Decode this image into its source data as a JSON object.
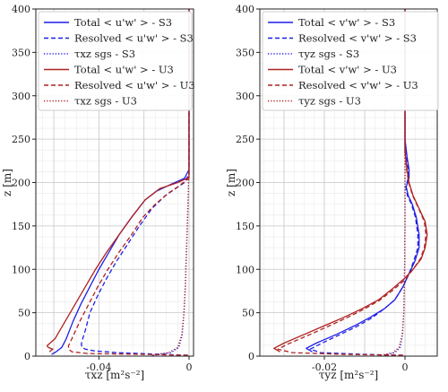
{
  "colors": {
    "S3": "#1f1fe6",
    "U3": "#b02020",
    "grid_major": "#c9c9c9",
    "grid_minor": "#ececec"
  },
  "chart_data": [
    {
      "type": "line",
      "xlim": [
        -0.068,
        0.002
      ],
      "ylim": [
        0,
        400
      ],
      "xticks": [
        -0.04,
        0
      ],
      "xtick_labels": [
        "-0.04",
        "0"
      ],
      "yticks": [
        0,
        50,
        100,
        150,
        200,
        250,
        300,
        350,
        400
      ],
      "ytick_labels": [
        "0",
        "50",
        "100",
        "150",
        "200",
        "250",
        "300",
        "350",
        "400"
      ],
      "ylabel": "z [m]",
      "xlabel": "τxz [m²s⁻²]",
      "grid": "on (major and minor)",
      "legend_position": "top",
      "legend": [
        {
          "text": "Total < u'w' > - S3",
          "color": "#1f1fe6",
          "style": "solid"
        },
        {
          "text": "Resolved < u'w' > - S3",
          "color": "#1f1fe6",
          "style": "dashed"
        },
        {
          "text": "τxz sgs - S3",
          "color": "#1f1fe6",
          "style": "dotted"
        },
        {
          "text": "Total < u'w' > - U3",
          "color": "#b02020",
          "style": "solid"
        },
        {
          "text": "Resolved < u'w' > - U3",
          "color": "#b02020",
          "style": "dashed"
        },
        {
          "text": "τxz sgs - U3",
          "color": "#b02020",
          "style": "dotted"
        }
      ],
      "series": [
        {
          "name": "Total < u'w' > - S3",
          "color": "#1f1fe6",
          "style": "solid",
          "points": [
            [
              -0.061,
              2
            ],
            [
              -0.059,
              5
            ],
            [
              -0.0565,
              10
            ],
            [
              -0.0545,
              20
            ],
            [
              -0.0515,
              40
            ],
            [
              -0.048,
              60
            ],
            [
              -0.044,
              80
            ],
            [
              -0.04,
              100
            ],
            [
              -0.0355,
              120
            ],
            [
              -0.031,
              140
            ],
            [
              -0.0255,
              160
            ],
            [
              -0.0195,
              180
            ],
            [
              -0.0145,
              190
            ],
            [
              -0.008,
              198
            ],
            [
              -0.002,
              205
            ],
            [
              0,
              215
            ],
            [
              0,
              400
            ]
          ]
        },
        {
          "name": "Resolved < u'w' > - S3",
          "color": "#1f1fe6",
          "style": "dashed",
          "points": [
            [
              -0.0005,
              1
            ],
            [
              -0.012,
              2
            ],
            [
              -0.032,
              4
            ],
            [
              -0.042,
              6
            ],
            [
              -0.046,
              8
            ],
            [
              -0.0475,
              10
            ],
            [
              -0.0478,
              14
            ],
            [
              -0.0472,
              20
            ],
            [
              -0.046,
              30
            ],
            [
              -0.044,
              50
            ],
            [
              -0.0405,
              70
            ],
            [
              -0.0365,
              90
            ],
            [
              -0.032,
              110
            ],
            [
              -0.027,
              130
            ],
            [
              -0.022,
              150
            ],
            [
              -0.0165,
              170
            ],
            [
              -0.0105,
              185
            ],
            [
              -0.006,
              193
            ],
            [
              -0.002,
              200
            ],
            [
              0,
              210
            ],
            [
              0,
              400
            ]
          ]
        },
        {
          "name": "τxz sgs - S3",
          "color": "#1f1fe6",
          "style": "dotted",
          "points": [
            [
              -0.016,
              1
            ],
            [
              -0.008,
              4
            ],
            [
              -0.0045,
              10
            ],
            [
              -0.003,
              25
            ],
            [
              -0.0022,
              50
            ],
            [
              -0.0016,
              80
            ],
            [
              -0.0011,
              120
            ],
            [
              -0.0006,
              160
            ],
            [
              -0.0002,
              200
            ],
            [
              0,
              220
            ],
            [
              0,
              400
            ]
          ]
        },
        {
          "name": "Total < u'w' > - U3",
          "color": "#b02020",
          "style": "solid",
          "points": [
            [
              -0.062,
              5
            ],
            [
              -0.0605,
              8
            ],
            [
              -0.0625,
              10
            ],
            [
              -0.063,
              12
            ],
            [
              -0.0595,
              20
            ],
            [
              -0.055,
              40
            ],
            [
              -0.0505,
              60
            ],
            [
              -0.046,
              80
            ],
            [
              -0.0415,
              100
            ],
            [
              -0.0365,
              120
            ],
            [
              -0.031,
              140
            ],
            [
              -0.0255,
              160
            ],
            [
              -0.0195,
              180
            ],
            [
              -0.013,
              193
            ],
            [
              -0.005,
              200
            ],
            [
              0,
              206
            ],
            [
              0,
              400
            ]
          ]
        },
        {
          "name": "Resolved < u'w' > - U3",
          "color": "#b02020",
          "style": "dashed",
          "points": [
            [
              -0.0005,
              1
            ],
            [
              -0.02,
              2
            ],
            [
              -0.045,
              3
            ],
            [
              -0.052,
              5
            ],
            [
              -0.0535,
              8
            ],
            [
              -0.0535,
              12
            ],
            [
              -0.052,
              20
            ],
            [
              -0.0485,
              40
            ],
            [
              -0.0445,
              60
            ],
            [
              -0.0405,
              80
            ],
            [
              -0.036,
              100
            ],
            [
              -0.031,
              120
            ],
            [
              -0.0255,
              140
            ],
            [
              -0.0205,
              160
            ],
            [
              -0.015,
              175
            ],
            [
              -0.009,
              188
            ],
            [
              -0.0045,
              196
            ],
            [
              0,
              205
            ],
            [
              0,
              400
            ]
          ]
        },
        {
          "name": "τxz sgs - U3",
          "color": "#b02020",
          "style": "dotted",
          "points": [
            [
              -0.0165,
              1
            ],
            [
              -0.009,
              4
            ],
            [
              -0.005,
              10
            ],
            [
              -0.0032,
              25
            ],
            [
              -0.0023,
              50
            ],
            [
              -0.0017,
              80
            ],
            [
              -0.0012,
              120
            ],
            [
              -0.0007,
              160
            ],
            [
              -0.0002,
              200
            ],
            [
              0,
              215
            ],
            [
              0,
              400
            ]
          ]
        }
      ]
    },
    {
      "type": "line",
      "xlim": [
        -0.036,
        0.008
      ],
      "ylim": [
        0,
        400
      ],
      "xticks": [
        -0.02,
        0
      ],
      "xtick_labels": [
        "-0.02",
        "0"
      ],
      "yticks": [
        0,
        50,
        100,
        150,
        200,
        250,
        300,
        350,
        400
      ],
      "ytick_labels": [
        "0",
        "50",
        "100",
        "150",
        "200",
        "250",
        "300",
        "350",
        "400"
      ],
      "ylabel": "z [m]",
      "xlabel": "τyz [m²s⁻²]",
      "grid": "on (major and minor)",
      "legend_position": "top",
      "legend": [
        {
          "text": "Total < v'w' > - S3",
          "color": "#1f1fe6",
          "style": "solid"
        },
        {
          "text": "Resolved < v'w' > - S3",
          "color": "#1f1fe6",
          "style": "dashed"
        },
        {
          "text": "τyz sgs - S3",
          "color": "#1f1fe6",
          "style": "dotted"
        },
        {
          "text": "Total < v'w' > - U3",
          "color": "#b02020",
          "style": "solid"
        },
        {
          "text": "Resolved < v'w' > - U3",
          "color": "#b02020",
          "style": "dashed"
        },
        {
          "text": "τyz sgs - U3",
          "color": "#b02020",
          "style": "dotted"
        }
      ],
      "series": [
        {
          "name": "Total < v'w' > - S3",
          "color": "#1f1fe6",
          "style": "solid",
          "points": [
            [
              -0.023,
              5
            ],
            [
              -0.0245,
              9
            ],
            [
              -0.022,
              15
            ],
            [
              -0.017,
              25
            ],
            [
              -0.0125,
              35
            ],
            [
              -0.0085,
              45
            ],
            [
              -0.005,
              55
            ],
            [
              -0.0025,
              65
            ],
            [
              -0.0005,
              80
            ],
            [
              0.001,
              95
            ],
            [
              0.0025,
              110
            ],
            [
              0.0035,
              125
            ],
            [
              0.0035,
              140
            ],
            [
              0.0028,
              160
            ],
            [
              0.0018,
              175
            ],
            [
              0.0008,
              185
            ],
            [
              0.0003,
              195
            ],
            [
              0.001,
              205
            ],
            [
              0.001,
              215
            ],
            [
              0.0005,
              230
            ],
            [
              0,
              250
            ],
            [
              0,
              400
            ]
          ]
        },
        {
          "name": "Resolved < v'w' > - S3",
          "color": "#1f1fe6",
          "style": "dashed",
          "points": [
            [
              -0.0005,
              1
            ],
            [
              -0.01,
              2
            ],
            [
              -0.021,
              4
            ],
            [
              -0.0235,
              8
            ],
            [
              -0.021,
              14
            ],
            [
              -0.0165,
              24
            ],
            [
              -0.012,
              34
            ],
            [
              -0.0082,
              44
            ],
            [
              -0.005,
              55
            ],
            [
              -0.0025,
              65
            ],
            [
              -0.0005,
              80
            ],
            [
              0.001,
              95
            ],
            [
              0.0022,
              110
            ],
            [
              0.0032,
              125
            ],
            [
              0.0032,
              140
            ],
            [
              0.0026,
              160
            ],
            [
              0.0016,
              175
            ],
            [
              0.0006,
              185
            ],
            [
              0.0002,
              195
            ],
            [
              0.0008,
              205
            ],
            [
              0.0008,
              215
            ],
            [
              0,
              240
            ],
            [
              0,
              400
            ]
          ]
        },
        {
          "name": "τyz sgs - S3",
          "color": "#1f1fe6",
          "style": "dotted",
          "points": [
            [
              -0.005,
              1
            ],
            [
              -0.0025,
              4
            ],
            [
              -0.0012,
              10
            ],
            [
              -0.0006,
              25
            ],
            [
              -0.0003,
              50
            ],
            [
              -0.0001,
              100
            ],
            [
              0,
              150
            ],
            [
              0,
              400
            ]
          ]
        },
        {
          "name": "Total < v'w' > - U3",
          "color": "#b02020",
          "style": "solid",
          "points": [
            [
              -0.031,
              5
            ],
            [
              -0.0325,
              9
            ],
            [
              -0.03,
              15
            ],
            [
              -0.025,
              25
            ],
            [
              -0.02,
              35
            ],
            [
              -0.015,
              45
            ],
            [
              -0.0105,
              55
            ],
            [
              -0.0065,
              65
            ],
            [
              -0.003,
              78
            ],
            [
              0,
              90
            ],
            [
              0.002,
              100
            ],
            [
              0.004,
              112
            ],
            [
              0.005,
              125
            ],
            [
              0.0055,
              140
            ],
            [
              0.005,
              155
            ],
            [
              0.0035,
              170
            ],
            [
              0.002,
              185
            ],
            [
              0.001,
              200
            ],
            [
              0.0005,
              215
            ],
            [
              0,
              235
            ],
            [
              0,
              400
            ]
          ]
        },
        {
          "name": "Resolved < v'w' > - U3",
          "color": "#b02020",
          "style": "dashed",
          "points": [
            [
              -0.0005,
              1
            ],
            [
              -0.015,
              2
            ],
            [
              -0.028,
              4
            ],
            [
              -0.0315,
              8
            ],
            [
              -0.029,
              14
            ],
            [
              -0.024,
              24
            ],
            [
              -0.0192,
              34
            ],
            [
              -0.0145,
              44
            ],
            [
              -0.0102,
              54
            ],
            [
              -0.0064,
              64
            ],
            [
              -0.003,
              76
            ],
            [
              0,
              88
            ],
            [
              0.002,
              100
            ],
            [
              0.0038,
              112
            ],
            [
              0.0048,
              125
            ],
            [
              0.0052,
              140
            ],
            [
              0.0048,
              155
            ],
            [
              0.0034,
              170
            ],
            [
              0.0019,
              185
            ],
            [
              0.0009,
              200
            ],
            [
              0.0004,
              215
            ],
            [
              0,
              235
            ],
            [
              0,
              400
            ]
          ]
        },
        {
          "name": "τyz sgs - U3",
          "color": "#b02020",
          "style": "dotted",
          "points": [
            [
              -0.006,
              1
            ],
            [
              -0.003,
              4
            ],
            [
              -0.0015,
              10
            ],
            [
              -0.0007,
              25
            ],
            [
              -0.0003,
              50
            ],
            [
              -0.0001,
              100
            ],
            [
              0,
              150
            ],
            [
              0,
              400
            ]
          ]
        }
      ]
    }
  ]
}
